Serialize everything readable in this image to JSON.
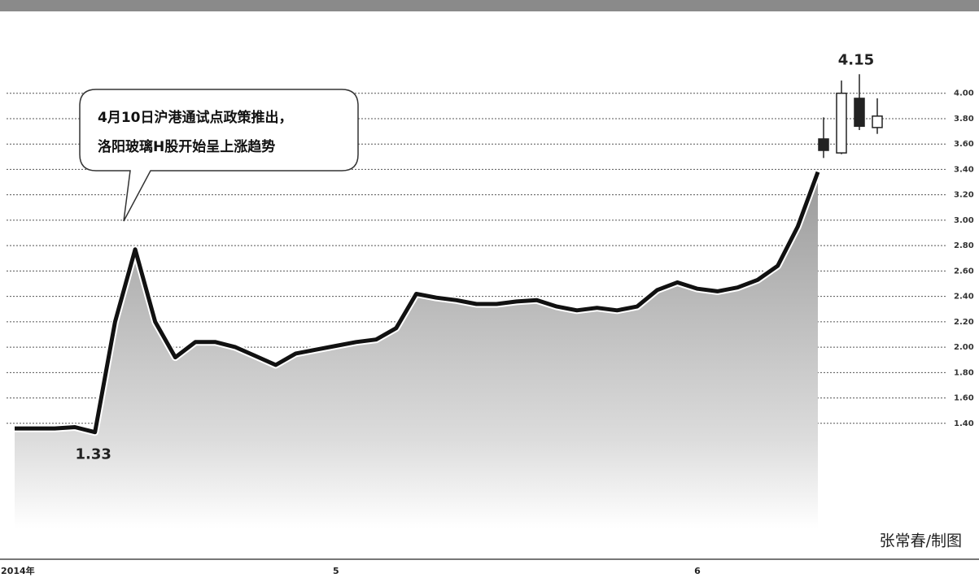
{
  "chart_data": {
    "type": "line",
    "categories": [
      null,
      "2014年",
      null,
      null,
      null,
      null,
      null,
      null,
      null,
      null,
      null,
      null,
      null,
      null,
      null,
      null,
      "5",
      null,
      null,
      null,
      null,
      null,
      null,
      null,
      null,
      null,
      null,
      null,
      null,
      null,
      null,
      null,
      null,
      null,
      "6",
      null,
      null,
      null,
      null,
      null,
      null
    ],
    "values": [
      1.36,
      1.36,
      1.36,
      1.37,
      1.33,
      2.2,
      2.77,
      2.2,
      1.92,
      2.04,
      2.04,
      2.0,
      1.93,
      1.86,
      1.95,
      1.98,
      2.01,
      2.04,
      2.06,
      2.15,
      2.42,
      2.39,
      2.37,
      2.34,
      2.34,
      2.36,
      2.37,
      2.32,
      2.29,
      2.31,
      2.29,
      2.32,
      2.45,
      2.51,
      2.46,
      2.44,
      2.47,
      2.53,
      2.64,
      2.95,
      3.38
    ],
    "color": "#111111",
    "area": true,
    "candles": {
      "open": [
        3.64,
        3.53,
        3.96,
        3.73
      ],
      "high": [
        3.81,
        4.1,
        4.15,
        3.96
      ],
      "low": [
        3.49,
        3.52,
        3.71,
        3.68
      ],
      "close": [
        3.55,
        4.0,
        3.74,
        3.82
      ]
    },
    "ylim": [
      0.4,
      4.6
    ],
    "yticks": [
      {
        "value": 1.4,
        "label": "1.40"
      },
      {
        "value": 1.6,
        "label": "1.60"
      },
      {
        "value": 1.8,
        "label": "1.80"
      },
      {
        "value": 2.0,
        "label": "2.00"
      },
      {
        "value": 2.2,
        "label": "2.20"
      },
      {
        "value": 2.4,
        "label": "2.40"
      },
      {
        "value": 2.6,
        "label": "2.60"
      },
      {
        "value": 2.8,
        "label": "2.80"
      },
      {
        "value": 3.0,
        "label": "3.00"
      },
      {
        "value": 3.2,
        "label": "3.20"
      },
      {
        "value": 3.4,
        "label": "3.40"
      },
      {
        "value": 3.6,
        "label": "3.60"
      },
      {
        "value": 3.8,
        "label": "3.80"
      },
      {
        "value": 4.0,
        "label": "4.00"
      }
    ],
    "grid": true,
    "callout": [
      "4月10日沪港通试点政策推出，",
      "洛阳玻璃H股开始呈上涨趋势"
    ],
    "credit": "张常春/制图"
  }
}
